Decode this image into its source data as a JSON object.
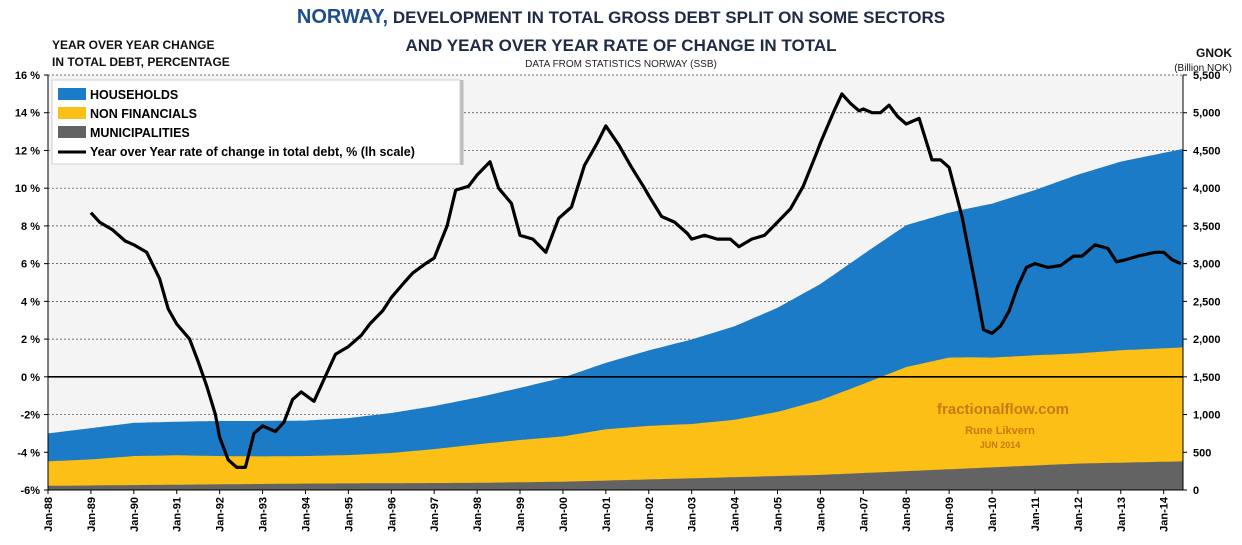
{
  "header": {
    "country": "NORWAY,",
    "title_rest": "DEVELOPMENT  IN TOTAL GROSS DEBT SPLIT ON SOME SECTORS",
    "title_line2": "AND YEAR OVER YEAR RATE OF CHANGE IN  TOTAL",
    "source": "DATA FROM  STATISTICS NORWAY (SSB)",
    "left_axis_line1": "YEAR OVER YEAR CHANGE",
    "left_axis_line2": "IN TOTAL DEBT, PERCENTAGE",
    "right_axis_line1": "GNOK",
    "right_axis_line2": "(Billion NOK)"
  },
  "watermark": {
    "site": "fractionalflow.com",
    "author": "Rune Likvern",
    "date": "JUN  2014"
  },
  "colors": {
    "households": "#1b7bc6",
    "non_financials": "#fcbf16",
    "municipalities": "#636363",
    "line": "#000000",
    "plot_background": "#f4f4f4",
    "watermark": "#c97a12"
  },
  "chart_data": {
    "type": "area",
    "x_tick_labels": [
      "Jan-88",
      "Jan-89",
      "Jan-90",
      "Jan-91",
      "Jan-92",
      "Jan-93",
      "Jan-94",
      "Jan-95",
      "Jan-96",
      "Jan-97",
      "Jan-98",
      "Jan-99",
      "Jan-00",
      "Jan-01",
      "Jan-02",
      "Jan-03",
      "Jan-04",
      "Jan-05",
      "Jan-06",
      "Jan-07",
      "Jan-08",
      "Jan-09",
      "Jan-10",
      "Jan-11",
      "Jan-12",
      "Jan-13",
      "Jan-14"
    ],
    "x_range": [
      1988.0,
      2014.45
    ],
    "left_axis": {
      "label": "YEAR OVER YEAR CHANGE IN TOTAL DEBT, PERCENTAGE",
      "range": [
        -6,
        16
      ],
      "ticks": [
        "-6%",
        "-4 %",
        "-2%",
        "0 %",
        "2 %",
        "4 %",
        "6 %",
        "8 %",
        "10 %",
        "12 %",
        "14 %",
        "16 %"
      ],
      "tick_values": [
        -6,
        -4,
        -2,
        0,
        2,
        4,
        6,
        8,
        10,
        12,
        14,
        16
      ]
    },
    "right_axis": {
      "label": "GNOK (Billion NOK)",
      "range": [
        0,
        5500
      ],
      "ticks": [
        "0",
        "500",
        "1,000",
        "1,500",
        "2,000",
        "2,500",
        "3,000",
        "3,500",
        "4,000",
        "4,500",
        "5,000",
        "5,500"
      ],
      "tick_values": [
        0,
        500,
        1000,
        1500,
        2000,
        2500,
        3000,
        3500,
        4000,
        4500,
        5000,
        5500
      ]
    },
    "legend": {
      "position": "top-left",
      "entries": [
        "HOUSEHOLDS",
        "NON FINANCIALS",
        "MUNICIPALITIES",
        "Year over Year rate of change in total debt, % (lh scale)"
      ]
    },
    "stacked_series": [
      {
        "name": "MUNICIPALITIES",
        "axis": "right",
        "points": [
          [
            1988.0,
            55
          ],
          [
            1990.0,
            65
          ],
          [
            1992.0,
            75
          ],
          [
            1994.0,
            85
          ],
          [
            1996.0,
            90
          ],
          [
            1998.0,
            95
          ],
          [
            2000.0,
            110
          ],
          [
            2002.0,
            140
          ],
          [
            2004.0,
            170
          ],
          [
            2006.0,
            200
          ],
          [
            2008.0,
            250
          ],
          [
            2010.0,
            300
          ],
          [
            2012.0,
            350
          ],
          [
            2014.45,
            380
          ]
        ]
      },
      {
        "name": "NON FINANCIALS",
        "axis": "right",
        "points": [
          [
            1988.0,
            325
          ],
          [
            1989.0,
            345
          ],
          [
            1990.0,
            385
          ],
          [
            1991.0,
            390
          ],
          [
            1992.0,
            375
          ],
          [
            1993.0,
            365
          ],
          [
            1994.0,
            365
          ],
          [
            1995.0,
            375
          ],
          [
            1996.0,
            400
          ],
          [
            1997.0,
            450
          ],
          [
            1998.0,
            510
          ],
          [
            1999.0,
            560
          ],
          [
            2000.0,
            600
          ],
          [
            2001.0,
            680
          ],
          [
            2002.0,
            710
          ],
          [
            2003.0,
            720
          ],
          [
            2004.0,
            760
          ],
          [
            2005.0,
            850
          ],
          [
            2006.0,
            990
          ],
          [
            2007.0,
            1180
          ],
          [
            2008.0,
            1380
          ],
          [
            2009.0,
            1480
          ],
          [
            2009.5,
            1470
          ],
          [
            2010.0,
            1455
          ],
          [
            2011.0,
            1460
          ],
          [
            2012.0,
            1460
          ],
          [
            2013.0,
            1490
          ],
          [
            2014.45,
            1510
          ]
        ]
      },
      {
        "name": "HOUSEHOLDS",
        "axis": "right",
        "points": [
          [
            1988.0,
            370
          ],
          [
            1989.0,
            415
          ],
          [
            1990.0,
            440
          ],
          [
            1991.0,
            445
          ],
          [
            1992.0,
            465
          ],
          [
            1993.0,
            470
          ],
          [
            1994.0,
            470
          ],
          [
            1995.0,
            490
          ],
          [
            1996.0,
            530
          ],
          [
            1997.0,
            570
          ],
          [
            1998.0,
            620
          ],
          [
            1999.0,
            690
          ],
          [
            2000.0,
            780
          ],
          [
            2001.0,
            880
          ],
          [
            2002.0,
            1000
          ],
          [
            2003.0,
            1120
          ],
          [
            2004.0,
            1240
          ],
          [
            2005.0,
            1380
          ],
          [
            2006.0,
            1540
          ],
          [
            2007.0,
            1720
          ],
          [
            2008.0,
            1880
          ],
          [
            2009.0,
            1920
          ],
          [
            2010.0,
            2040
          ],
          [
            2011.0,
            2190
          ],
          [
            2012.0,
            2370
          ],
          [
            2013.0,
            2500
          ],
          [
            2014.45,
            2630
          ]
        ]
      }
    ],
    "line_series": {
      "name": "Year over Year rate of change in total debt, % (lh scale)",
      "axis": "left",
      "points": [
        [
          1989.0,
          8.7
        ],
        [
          1989.2,
          8.2
        ],
        [
          1989.5,
          7.8
        ],
        [
          1989.8,
          7.2
        ],
        [
          1990.0,
          7.0
        ],
        [
          1990.3,
          6.6
        ],
        [
          1990.6,
          5.2
        ],
        [
          1990.8,
          3.6
        ],
        [
          1991.0,
          2.8
        ],
        [
          1991.3,
          2.0
        ],
        [
          1991.5,
          0.8
        ],
        [
          1991.7,
          -0.5
        ],
        [
          1991.9,
          -2.0
        ],
        [
          1992.0,
          -3.2
        ],
        [
          1992.2,
          -4.4
        ],
        [
          1992.4,
          -4.8
        ],
        [
          1992.6,
          -4.8
        ],
        [
          1992.8,
          -3.0
        ],
        [
          1993.0,
          -2.6
        ],
        [
          1993.3,
          -2.9
        ],
        [
          1993.5,
          -2.4
        ],
        [
          1993.7,
          -1.2
        ],
        [
          1993.9,
          -0.8
        ],
        [
          1994.2,
          -1.3
        ],
        [
          1994.5,
          0.2
        ],
        [
          1994.7,
          1.2
        ],
        [
          1995.0,
          1.6
        ],
        [
          1995.3,
          2.2
        ],
        [
          1995.5,
          2.8
        ],
        [
          1995.8,
          3.5
        ],
        [
          1996.0,
          4.2
        ],
        [
          1996.3,
          5.0
        ],
        [
          1996.5,
          5.5
        ],
        [
          1996.8,
          6.0
        ],
        [
          1997.0,
          6.3
        ],
        [
          1997.3,
          8.0
        ],
        [
          1997.5,
          9.9
        ],
        [
          1997.8,
          10.1
        ],
        [
          1998.0,
          10.7
        ],
        [
          1998.3,
          11.4
        ],
        [
          1998.5,
          10.0
        ],
        [
          1998.8,
          9.2
        ],
        [
          1999.0,
          7.5
        ],
        [
          1999.3,
          7.3
        ],
        [
          1999.6,
          6.6
        ],
        [
          1999.9,
          8.4
        ],
        [
          2000.2,
          9.0
        ],
        [
          2000.5,
          11.2
        ],
        [
          2000.8,
          12.4
        ],
        [
          2001.0,
          13.3
        ],
        [
          2001.3,
          12.3
        ],
        [
          2001.6,
          11.1
        ],
        [
          2001.9,
          10.0
        ],
        [
          2002.0,
          9.6
        ],
        [
          2002.3,
          8.5
        ],
        [
          2002.6,
          8.2
        ],
        [
          2002.9,
          7.6
        ],
        [
          2003.0,
          7.3
        ],
        [
          2003.3,
          7.5
        ],
        [
          2003.6,
          7.3
        ],
        [
          2003.9,
          7.3
        ],
        [
          2004.1,
          6.9
        ],
        [
          2004.4,
          7.3
        ],
        [
          2004.7,
          7.5
        ],
        [
          2005.0,
          8.2
        ],
        [
          2005.3,
          8.9
        ],
        [
          2005.6,
          10.1
        ],
        [
          2005.9,
          11.8
        ],
        [
          2006.0,
          12.4
        ],
        [
          2006.3,
          14.0
        ],
        [
          2006.5,
          15.0
        ],
        [
          2006.7,
          14.5
        ],
        [
          2006.9,
          14.1
        ],
        [
          2007.0,
          14.2
        ],
        [
          2007.2,
          14.0
        ],
        [
          2007.4,
          14.0
        ],
        [
          2007.6,
          14.4
        ],
        [
          2007.8,
          13.8
        ],
        [
          2008.0,
          13.4
        ],
        [
          2008.3,
          13.7
        ],
        [
          2008.6,
          11.5
        ],
        [
          2008.8,
          11.5
        ],
        [
          2009.0,
          11.1
        ],
        [
          2009.3,
          8.5
        ],
        [
          2009.6,
          5.0
        ],
        [
          2009.8,
          2.5
        ],
        [
          2010.0,
          2.3
        ],
        [
          2010.2,
          2.7
        ],
        [
          2010.4,
          3.5
        ],
        [
          2010.6,
          4.8
        ],
        [
          2010.8,
          5.8
        ],
        [
          2011.0,
          6.0
        ],
        [
          2011.3,
          5.8
        ],
        [
          2011.6,
          5.9
        ],
        [
          2011.9,
          6.4
        ],
        [
          2012.1,
          6.4
        ],
        [
          2012.4,
          7.0
        ],
        [
          2012.7,
          6.8
        ],
        [
          2012.9,
          6.1
        ],
        [
          2013.1,
          6.2
        ],
        [
          2013.4,
          6.4
        ],
        [
          2013.6,
          6.5
        ],
        [
          2013.8,
          6.6
        ],
        [
          2014.0,
          6.6
        ],
        [
          2014.2,
          6.2
        ],
        [
          2014.4,
          6.0
        ]
      ]
    },
    "grid": true
  }
}
